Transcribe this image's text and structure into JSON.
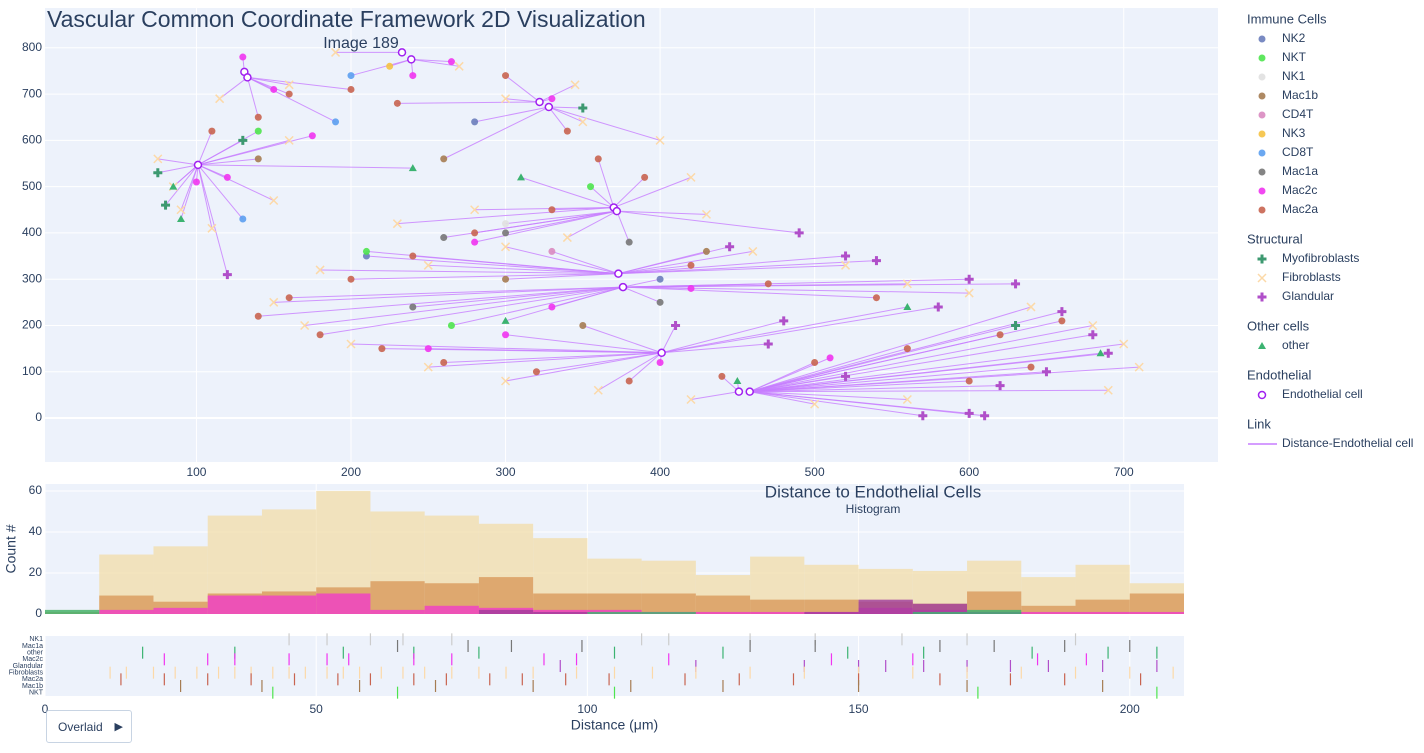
{
  "chart_data": [
    {
      "type": "scatter",
      "title": "Vascular Common Coordinate Framework 2D Visualization",
      "subtitle": "Image 189",
      "xlim": [
        2,
        761
      ],
      "ylim": [
        -95,
        886
      ],
      "xticks": [
        100,
        200,
        300,
        400,
        500,
        600,
        700
      ],
      "yticks": [
        0,
        100,
        200,
        300,
        400,
        500,
        600,
        700,
        800
      ],
      "grid": true,
      "legend_groups": [
        "Immune Cells",
        "Structural",
        "Other cells",
        "Endothelial",
        "Link"
      ],
      "series": [
        {
          "name": "NK2",
          "group": 0,
          "color": "#6a7dbb",
          "symbol": "circle",
          "x": [
            210,
            280,
            400
          ],
          "y": [
            350,
            640,
            300
          ]
        },
        {
          "name": "NKT",
          "group": 0,
          "color": "#4ee44e",
          "symbol": "circle",
          "x": [
            210,
            140,
            265,
            355
          ],
          "y": [
            360,
            620,
            200,
            500
          ]
        },
        {
          "name": "NK1",
          "group": 0,
          "color": "#e0e0e0",
          "symbol": "circle",
          "x": [
            300
          ],
          "y": [
            420
          ]
        },
        {
          "name": "Mac1b",
          "group": 0,
          "color": "#a57c52",
          "symbol": "circle",
          "x": [
            140,
            260,
            300,
            350,
            430
          ],
          "y": [
            560,
            560,
            300,
            200,
            360
          ]
        },
        {
          "name": "CD4T",
          "group": 0,
          "color": "#d989c0",
          "symbol": "circle",
          "x": [
            330
          ],
          "y": [
            360
          ]
        },
        {
          "name": "NK3",
          "group": 0,
          "color": "#f5c242",
          "symbol": "circle",
          "x": [
            225
          ],
          "y": [
            760
          ]
        },
        {
          "name": "CD8T",
          "group": 0,
          "color": "#5b9ef0",
          "symbol": "circle",
          "x": [
            190,
            200,
            130
          ],
          "y": [
            640,
            740,
            430
          ]
        },
        {
          "name": "Mac1a",
          "group": 0,
          "color": "#777777",
          "symbol": "circle",
          "x": [
            260,
            300,
            400,
            380,
            240
          ],
          "y": [
            390,
            400,
            250,
            380,
            240
          ]
        },
        {
          "name": "Mac2c",
          "group": 0,
          "color": "#f034f0",
          "symbol": "circle",
          "x": [
            130,
            150,
            175,
            120,
            100,
            240,
            265,
            330,
            420,
            300,
            250,
            400,
            330,
            510,
            280
          ],
          "y": [
            780,
            710,
            610,
            520,
            510,
            740,
            770,
            690,
            280,
            180,
            150,
            120,
            240,
            130,
            380
          ]
        },
        {
          "name": "Mac2a",
          "group": 0,
          "color": "#c86450",
          "symbol": "circle",
          "x": [
            110,
            140,
            160,
            200,
            230,
            300,
            340,
            360,
            390,
            330,
            280,
            240,
            200,
            160,
            140,
            180,
            220,
            260,
            320,
            380,
            440,
            500,
            560,
            620,
            660,
            640,
            600,
            540,
            470,
            420
          ],
          "y": [
            620,
            650,
            700,
            710,
            680,
            740,
            620,
            560,
            520,
            450,
            400,
            350,
            300,
            260,
            220,
            180,
            150,
            120,
            100,
            80,
            90,
            120,
            150,
            180,
            210,
            110,
            80,
            260,
            290,
            330
          ]
        },
        {
          "name": "Myofibroblasts",
          "group": 1,
          "color": "#3d9970",
          "symbol": "cross",
          "x": [
            75,
            80,
            130,
            350,
            630
          ],
          "y": [
            530,
            460,
            600,
            670,
            200
          ]
        },
        {
          "name": "Fibroblasts",
          "group": 1,
          "color": "#fcd9a8",
          "symbol": "x",
          "x": [
            75,
            85,
            90,
            110,
            150,
            160,
            115,
            160,
            190,
            270,
            300,
            350,
            345,
            400,
            420,
            430,
            460,
            520,
            560,
            600,
            640,
            680,
            700,
            710,
            690,
            560,
            500,
            420,
            360,
            300,
            250,
            200,
            170,
            150,
            180,
            250,
            300,
            340,
            280,
            230
          ],
          "y": [
            560,
            500,
            450,
            410,
            470,
            600,
            690,
            720,
            790,
            760,
            690,
            640,
            720,
            600,
            520,
            440,
            360,
            330,
            290,
            270,
            240,
            200,
            160,
            110,
            60,
            40,
            30,
            40,
            60,
            80,
            110,
            160,
            200,
            250,
            320,
            330,
            370,
            390,
            450,
            420
          ]
        },
        {
          "name": "Glandular",
          "group": 1,
          "color": "#b04fc9",
          "symbol": "cross",
          "x": [
            490,
            520,
            540,
            600,
            630,
            660,
            680,
            690,
            650,
            620,
            600,
            610,
            570,
            520,
            470,
            410,
            480,
            120,
            445,
            580
          ],
          "y": [
            400,
            350,
            340,
            300,
            290,
            230,
            180,
            140,
            100,
            70,
            10,
            5,
            5,
            90,
            160,
            200,
            210,
            310,
            370,
            240
          ]
        },
        {
          "name": "other",
          "group": 2,
          "color": "#3cb371",
          "symbol": "triangle",
          "x": [
            85,
            90,
            240,
            300,
            450,
            560,
            685,
            310
          ],
          "y": [
            500,
            430,
            540,
            210,
            80,
            240,
            140,
            520
          ]
        },
        {
          "name": "Endothelial cell",
          "group": 3,
          "color": "#a020f0",
          "symbol": "open-circle",
          "x": [
            101,
            131,
            133,
            233,
            239,
            322,
            328,
            370,
            372,
            373,
            376,
            401,
            451,
            458
          ],
          "y": [
            547,
            748,
            736,
            790,
            775,
            683,
            672,
            455,
            447,
            312,
            283,
            141,
            57,
            57
          ]
        }
      ],
      "links": {
        "name": "Distance-Endothelial cell",
        "group": 4,
        "color": "#c77dff"
      }
    },
    {
      "type": "histogram",
      "title": "Distance to Endothelial Cells",
      "subtitle": "Histogram",
      "y_label": "Count #",
      "ylim": [
        0,
        63.4
      ],
      "yticks": [
        0,
        20,
        40,
        60
      ],
      "bins": [
        0,
        10,
        20,
        30,
        40,
        50,
        60,
        70,
        80,
        90,
        100,
        110,
        120,
        130,
        140,
        150,
        160,
        170,
        180,
        190,
        200,
        210
      ],
      "series": [
        {
          "name": "Fibroblasts",
          "color": "#f1dca8",
          "values": [
            2,
            29,
            33,
            48,
            51,
            60,
            50,
            48,
            44,
            37,
            27,
            26,
            19,
            28,
            24,
            22,
            21,
            26,
            18,
            24,
            15
          ]
        },
        {
          "name": "Mac2a",
          "color": "#d99a5b",
          "values": [
            1,
            9,
            6,
            10,
            11,
            13,
            16,
            15,
            18,
            10,
            10,
            10,
            9,
            7,
            7,
            6,
            5,
            11,
            4,
            7,
            10
          ]
        },
        {
          "name": "Mac2c",
          "color": "#f03cc8",
          "values": [
            0,
            2,
            3,
            9,
            9,
            10,
            2,
            4,
            3,
            2,
            2,
            1,
            1,
            1,
            1,
            3,
            2,
            1,
            1,
            1,
            1
          ]
        },
        {
          "name": "Glandular",
          "color": "#a03c9c",
          "values": [
            0,
            0,
            0,
            0,
            0,
            0,
            0,
            0,
            2,
            1,
            0,
            0,
            0,
            0,
            1,
            7,
            5,
            1,
            0,
            0,
            0
          ]
        },
        {
          "name": "other",
          "color": "#3cb371",
          "values": [
            2,
            0,
            0,
            0,
            0,
            0,
            0,
            0,
            0,
            0,
            1,
            1,
            0,
            0,
            0,
            0,
            1,
            2,
            0,
            0,
            0
          ]
        }
      ]
    },
    {
      "type": "rug",
      "x_label": "Distance (μm)",
      "xlim": [
        0,
        210
      ],
      "xticks": [
        0,
        50,
        100,
        150,
        200
      ],
      "series": [
        {
          "name": "NK1",
          "color": "#cccccc",
          "values": [
            45,
            52,
            60,
            66,
            75,
            110,
            115,
            130,
            142,
            158,
            170,
            190
          ]
        },
        {
          "name": "Mac1a",
          "color": "#777777",
          "values": [
            65,
            78,
            86,
            99,
            130,
            142,
            165,
            175,
            188,
            200
          ]
        },
        {
          "name": "other",
          "color": "#3cb371",
          "values": [
            18,
            35,
            55,
            68,
            80,
            105,
            125,
            148,
            162,
            182,
            196,
            205
          ]
        },
        {
          "name": "Mac2c",
          "color": "#f034f0",
          "values": [
            22,
            30,
            35,
            45,
            52,
            56,
            68,
            75,
            92,
            98,
            115,
            145,
            160,
            183,
            192
          ]
        },
        {
          "name": "Glandular",
          "color": "#b04fc9",
          "values": [
            95,
            120,
            140,
            150,
            155,
            162,
            170,
            178,
            185,
            195,
            205
          ]
        },
        {
          "name": "Fibroblasts",
          "color": "#fcd9a8",
          "values": [
            12,
            15,
            20,
            24,
            28,
            32,
            35,
            38,
            42,
            45,
            48,
            52,
            55,
            58,
            62,
            66,
            70,
            75,
            80,
            85,
            90,
            98,
            105,
            112,
            120,
            130,
            140,
            150,
            160,
            170,
            180,
            190,
            200,
            208
          ]
        },
        {
          "name": "Mac2a",
          "color": "#c86450",
          "values": [
            14,
            22,
            30,
            38,
            46,
            54,
            60,
            68,
            74,
            82,
            88,
            96,
            104,
            118,
            128,
            138,
            150,
            165,
            178,
            188,
            202
          ]
        },
        {
          "name": "Mac1b",
          "color": "#a57c52",
          "values": [
            25,
            40,
            58,
            72,
            90,
            108,
            125,
            150,
            170,
            195
          ]
        },
        {
          "name": "NKT",
          "color": "#4ee44e",
          "values": [
            42,
            65,
            105,
            172,
            205
          ]
        }
      ]
    }
  ],
  "controls": {
    "mode_button": "Overlaid"
  }
}
